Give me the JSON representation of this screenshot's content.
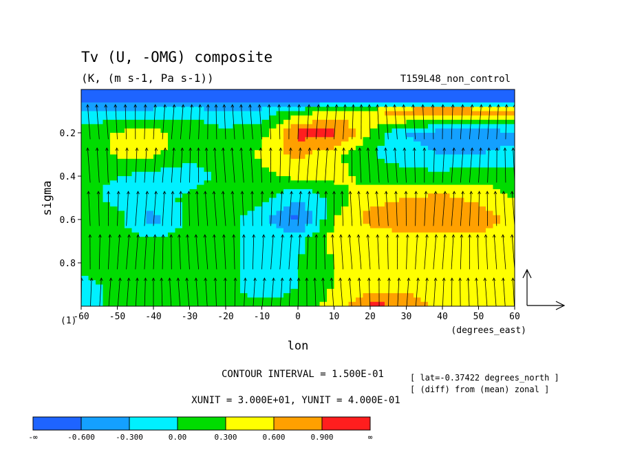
{
  "chart_data": {
    "type": "heatmap",
    "title": "Tv (U, -OMG) composite",
    "subtitle": "(K, (m s-1, Pa s-1))",
    "experiment": "T159L48_non_control",
    "xlabel": "lon",
    "ylabel": "sigma",
    "x_unit_label": "(degrees_east)",
    "y_axis_suffix": "(1)",
    "xlim": [
      -60,
      60
    ],
    "ylim": [
      1.0,
      0.0
    ],
    "x_ticks": [
      "-60",
      "-50",
      "-40",
      "-30",
      "-20",
      "-10",
      "0",
      "10",
      "20",
      "30",
      "40",
      "50",
      "60"
    ],
    "y_ticks": [
      "0.2",
      "0.4",
      "0.6",
      "0.8"
    ],
    "x_tick_values": [
      -60,
      -50,
      -40,
      -30,
      -20,
      -10,
      0,
      10,
      20,
      30,
      40,
      50,
      60
    ],
    "y_tick_values": [
      0.2,
      0.4,
      0.6,
      0.8
    ],
    "contour_interval": "CONTOUR INTERVAL = 1.500E-01",
    "units_text": "XUNIT = 3.000E+01, YUNIT = 4.000E-01",
    "info_lat": "[ lat=-0.37422 degrees_north ]",
    "info_diff": "[ (diff) from (mean) zonal ]",
    "legend": {
      "labels": [
        "-∞",
        "-0.600",
        "-0.300",
        "0.00",
        "0.300",
        "0.600",
        "0.900",
        "∞"
      ],
      "colors": [
        "#1e64ff",
        "#14a0ff",
        "#00f0ff",
        "#00dc00",
        "#ffff00",
        "#ffa000",
        "#ff1e1e"
      ]
    },
    "levels": [
      -0.6,
      -0.3,
      0.0,
      0.3,
      0.6,
      0.9
    ],
    "field": {
      "lon": [
        -60,
        -50,
        -40,
        -30,
        -20,
        -10,
        0,
        10,
        20,
        30,
        40,
        50,
        60
      ],
      "sigma": [
        0.05,
        0.1,
        0.2,
        0.3,
        0.4,
        0.5,
        0.6,
        0.7,
        0.8,
        0.9,
        1.0
      ],
      "values": [
        [
          -0.7,
          -0.7,
          -0.7,
          -0.7,
          -0.7,
          -0.7,
          -0.7,
          -0.7,
          -0.7,
          -0.7,
          -0.7,
          -0.7,
          -0.7
        ],
        [
          -0.2,
          -0.3,
          -0.2,
          -0.1,
          -0.3,
          -0.2,
          0.1,
          0.4,
          0.5,
          0.9,
          1.0,
          0.9,
          0.9
        ],
        [
          0.1,
          0.35,
          0.4,
          0.2,
          0.1,
          0.2,
          1.0,
          1.0,
          0.3,
          -0.3,
          -0.5,
          -0.5,
          -0.4
        ],
        [
          0.1,
          0.35,
          0.35,
          0.15,
          0.1,
          0.35,
          0.7,
          0.4,
          0.0,
          -0.2,
          -0.3,
          -0.3,
          -0.2
        ],
        [
          0.1,
          0.0,
          -0.1,
          -0.2,
          0.1,
          0.2,
          0.4,
          0.4,
          0.2,
          0.15,
          0.1,
          0.2,
          0.1
        ],
        [
          0.1,
          -0.1,
          -0.2,
          0.1,
          0.2,
          0.1,
          -0.3,
          0.1,
          0.5,
          0.6,
          0.7,
          0.5,
          0.3
        ],
        [
          0.2,
          0.1,
          -0.4,
          0.1,
          0.1,
          -0.2,
          -0.7,
          0.3,
          0.7,
          0.8,
          0.8,
          0.9,
          0.4
        ],
        [
          0.1,
          0.1,
          0.1,
          0.1,
          0.1,
          -0.1,
          -0.1,
          0.4,
          0.4,
          0.5,
          0.4,
          0.4,
          0.4
        ],
        [
          0.1,
          0.2,
          0.3,
          0.2,
          0.2,
          -0.3,
          0.0,
          0.3,
          0.4,
          0.4,
          0.35,
          0.3,
          0.35
        ],
        [
          -0.1,
          0.1,
          0.1,
          0.1,
          0.1,
          -0.2,
          0.0,
          0.3,
          0.4,
          0.4,
          0.35,
          0.35,
          0.4
        ],
        [
          -0.2,
          0.1,
          0.1,
          0.1,
          0.1,
          0.1,
          0.1,
          0.4,
          1.0,
          0.9,
          0.4,
          0.4,
          0.4
        ]
      ]
    }
  }
}
